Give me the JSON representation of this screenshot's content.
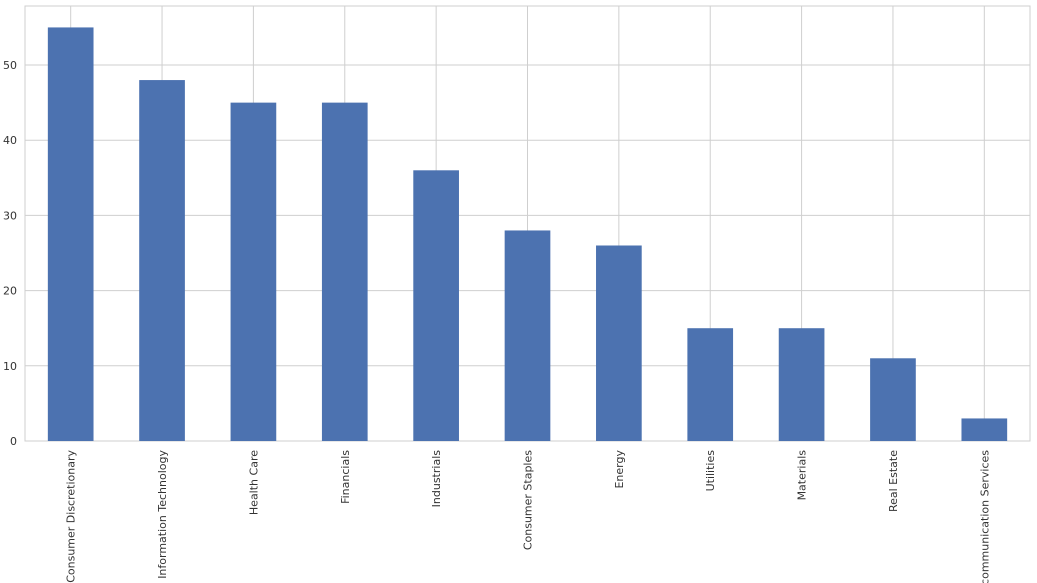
{
  "chart_data": {
    "type": "bar",
    "categories": [
      "Consumer Discretionary",
      "Information Technology",
      "Health Care",
      "Financials",
      "Industrials",
      "Consumer Staples",
      "Energy",
      "Utilities",
      "Materials",
      "Real Estate",
      "Telecommunication Services"
    ],
    "values": [
      55,
      48,
      45,
      45,
      36,
      28,
      26,
      15,
      15,
      11,
      3
    ],
    "color": "#4c72b0",
    "ylim": [
      0,
      57.85
    ],
    "yticks": [
      0,
      10,
      20,
      30,
      40,
      50
    ],
    "grid": true
  }
}
